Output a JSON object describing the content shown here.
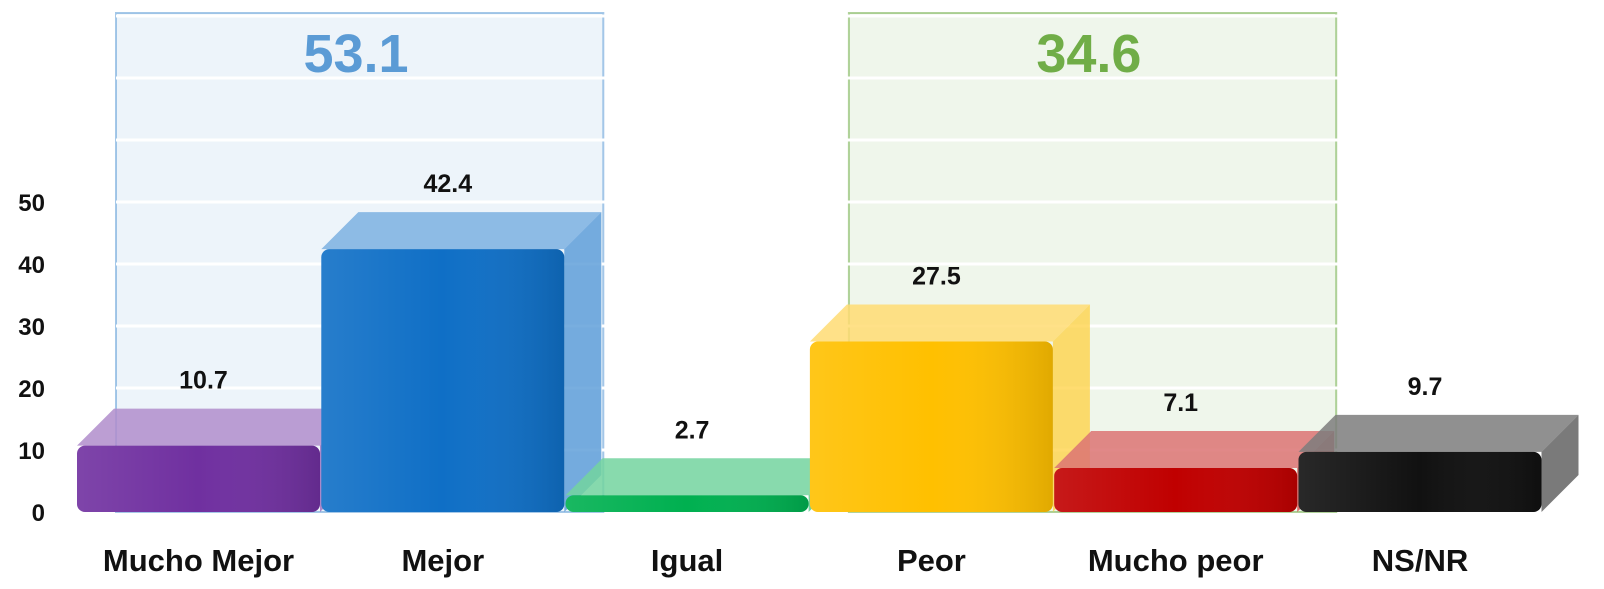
{
  "chart_data": {
    "type": "bar",
    "categories": [
      "Mucho Mejor",
      "Mejor",
      "Igual",
      "Peor",
      "Mucho peor",
      "NS/NR"
    ],
    "values": [
      10.7,
      42.4,
      2.7,
      27.5,
      7.1,
      9.7
    ],
    "value_labels": [
      "10.7",
      "42.4",
      "2.7",
      "27.5",
      "7.1",
      "9.7"
    ],
    "bar_colors": [
      "#7030a0",
      "#0f6fc6",
      "#00b050",
      "#ffc000",
      "#c00000",
      "#111111"
    ],
    "yticks": [
      "0",
      "10",
      "20",
      "30",
      "40",
      "50"
    ],
    "ylim": [
      0,
      50
    ],
    "grid": true,
    "groups": [
      {
        "label": "53.1",
        "value": 53.1,
        "covers": [
          "Mucho Mejor",
          "Mejor"
        ],
        "color": "#5b9bd5"
      },
      {
        "label": "34.6",
        "value": 34.6,
        "covers": [
          "Peor",
          "Mucho peor"
        ],
        "color": "#70ad47"
      }
    ]
  }
}
